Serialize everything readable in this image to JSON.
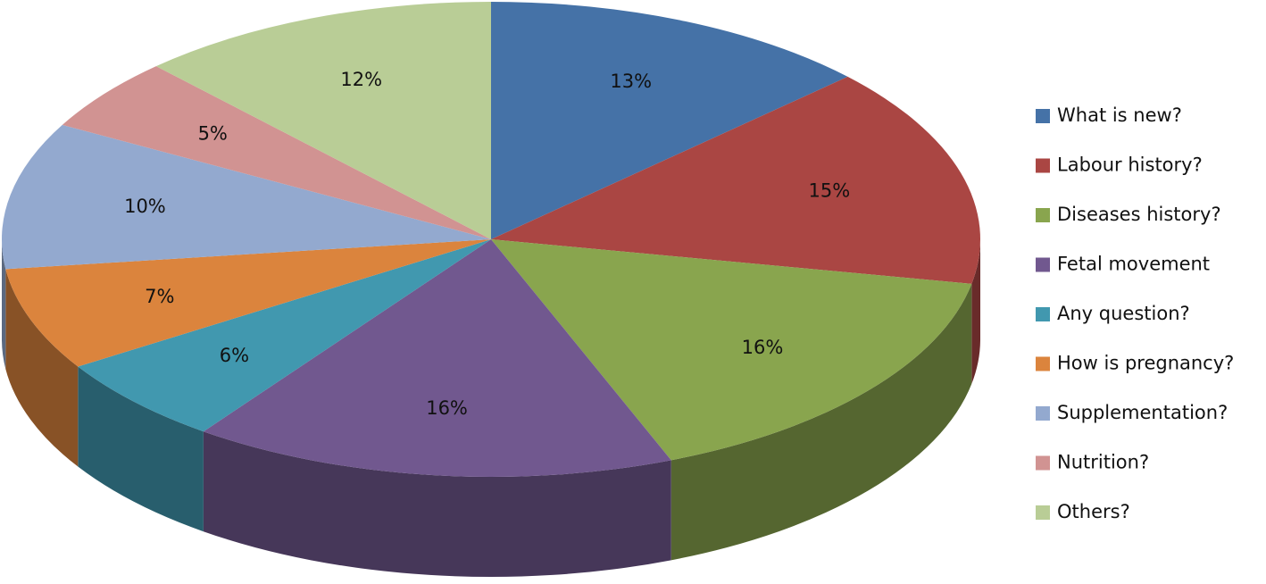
{
  "chart_data": {
    "type": "pie3d",
    "categories": [
      "What is new?",
      "Labour history?",
      "Diseases history?",
      "Fetal movement",
      "Any question?",
      "How is pregnancy?",
      "Supplementation?",
      "Nutrition?",
      "Others?"
    ],
    "values": [
      13,
      15,
      16,
      16,
      6,
      7,
      10,
      5,
      12
    ],
    "value_labels": [
      "13%",
      "15%",
      "16%",
      "16%",
      "6%",
      "7%",
      "10%",
      "5%",
      "12%"
    ],
    "colors": [
      "#4572a7",
      "#aa4643",
      "#89a54e",
      "#71588f",
      "#4198af",
      "#db843d",
      "#93a9cf",
      "#d19392",
      "#b9cd96"
    ],
    "legend": "right"
  }
}
